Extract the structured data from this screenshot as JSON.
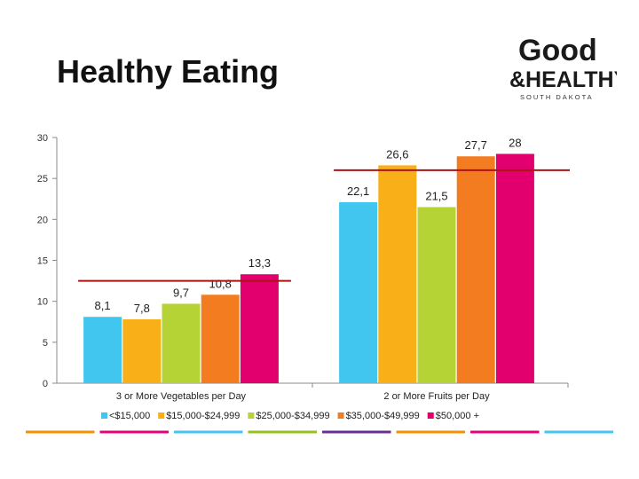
{
  "slide": {
    "title": "Healthy Eating"
  },
  "logo": {
    "top_word": "Good",
    "middle_word": "&HEALTHY",
    "sub_word": "SOUTH DAKOTA",
    "colors": [
      "#e6007e",
      "#009fe3",
      "#f39200",
      "#95c11f",
      "#6f2c91"
    ]
  },
  "chart_data": {
    "type": "bar",
    "categories": [
      "3 or More Vegetables per Day",
      "2 or More Fruits per Day"
    ],
    "series": [
      {
        "name": "<$15,000",
        "values": [
          8.1,
          22.1
        ],
        "labels": [
          "8,1",
          "22,1"
        ],
        "color": "#41c6ef"
      },
      {
        "name": "$15,000-$24,999",
        "values": [
          7.8,
          26.6
        ],
        "labels": [
          "7,8",
          "26,6"
        ],
        "color": "#f9b018"
      },
      {
        "name": "$25,000-$34,999",
        "values": [
          9.7,
          21.5
        ],
        "labels": [
          "9,7",
          "21,5"
        ],
        "color": "#b5d334"
      },
      {
        "name": "$35,000-$49,999",
        "values": [
          10.8,
          27.7
        ],
        "labels": [
          "10,8",
          "27,7"
        ],
        "color": "#f47c20"
      },
      {
        "name": "$50,000 +",
        "values": [
          13.3,
          28
        ],
        "labels": [
          "13,3",
          "28"
        ],
        "color": "#e2006f"
      }
    ],
    "reference_lines": [
      {
        "category": "3 or More Vegetables per Day",
        "value": 12.5,
        "color": "#b01212"
      },
      {
        "category": "2 or More Fruits per Day",
        "value": 26.0,
        "color": "#b01212"
      }
    ],
    "yticks": [
      0,
      5,
      10,
      15,
      20,
      25,
      30
    ],
    "ylim": [
      0,
      30
    ],
    "title": "",
    "xlabel": "",
    "ylabel": "",
    "legend": "bottom",
    "grid": false
  },
  "footer": {
    "line_colors": [
      "#f39200",
      "#e6007e",
      "#41c6ef",
      "#95c11f",
      "#6f2c91",
      "#f39200",
      "#e6007e",
      "#41c6ef"
    ]
  }
}
